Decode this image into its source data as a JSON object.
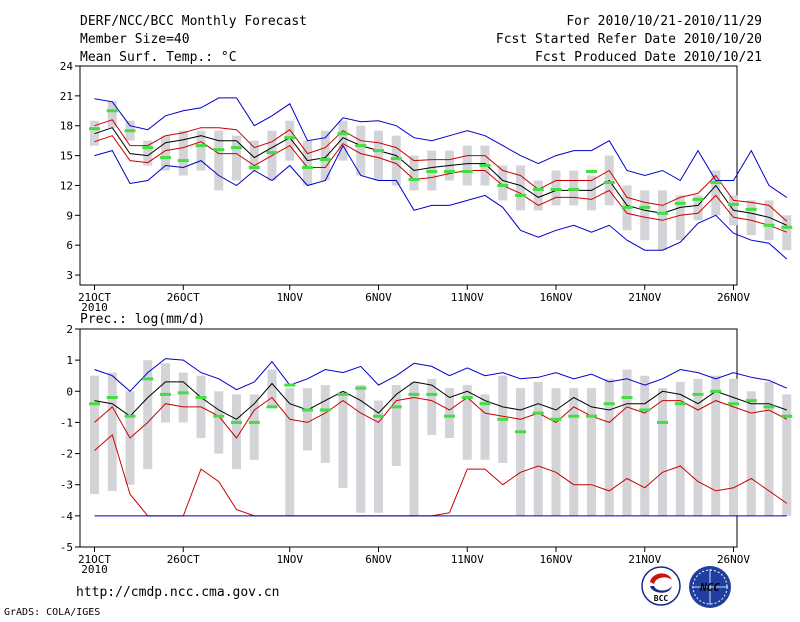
{
  "header": {
    "title": "DERF/NCC/BCC Monthly Forecast",
    "member_size": "Member Size=40",
    "variable": "Mean Surf. Temp.: °C",
    "period": "For 2010/10/21-2010/11/29",
    "fcst_start": "Fcst Started Refer Date 2010/10/20",
    "fcst_produced": "Fcst Produced Date 2010/10/21"
  },
  "footer": {
    "url": "http://cmdp.ncc.cma.gov.cn",
    "grads": "GrADS: COLA/IGES",
    "logo_bcc": "BCC",
    "logo_ncc": "NCC"
  },
  "colors": {
    "box": "#d3d3d8",
    "mean": "#000000",
    "spread": "#cc0000",
    "extreme": "#0000cc",
    "obs": "#44dd44"
  },
  "chart_data": [
    {
      "type": "line",
      "title": "Mean Surf. Temp.: °C",
      "x_start_label": "2010",
      "x": [
        21,
        22,
        23,
        24,
        25,
        26,
        27,
        28,
        29,
        30,
        31,
        32,
        33,
        34,
        35,
        36,
        37,
        38,
        39,
        40,
        41,
        42,
        43,
        44,
        45,
        46,
        47,
        48,
        49,
        50,
        51,
        52,
        53,
        54,
        55,
        56,
        57,
        58,
        59,
        60
      ],
      "xticks": [
        {
          "day": 21,
          "label": "21OCT"
        },
        {
          "day": 26,
          "label": "26OCT"
        },
        {
          "day": 32,
          "label": "1NOV"
        },
        {
          "day": 37,
          "label": "6NOV"
        },
        {
          "day": 42,
          "label": "11NOV"
        },
        {
          "day": 47,
          "label": "16NOV"
        },
        {
          "day": 52,
          "label": "21NOV"
        },
        {
          "day": 57,
          "label": "26NOV"
        }
      ],
      "ylim": [
        2,
        24
      ],
      "yticks": [
        3,
        6,
        9,
        12,
        15,
        18,
        21,
        24
      ],
      "series": [
        {
          "name": "max",
          "values": [
            20.7,
            20.4,
            18.0,
            17.6,
            19.0,
            19.5,
            19.8,
            20.8,
            20.8,
            18.0,
            19.0,
            20.2,
            16.5,
            16.8,
            18.8,
            18.4,
            18.5,
            18.0,
            16.8,
            16.5,
            17.0,
            17.5,
            17.0,
            16.0,
            15.0,
            14.2,
            15.0,
            15.5,
            15.5,
            16.5,
            13.5,
            13.0,
            13.5,
            12.5,
            15.5,
            12.5,
            12.5,
            15.5,
            12.0,
            10.8
          ]
        },
        {
          "name": "upper",
          "values": [
            18.0,
            18.6,
            16.0,
            16.0,
            17.0,
            17.3,
            17.8,
            17.8,
            17.6,
            15.8,
            16.4,
            17.6,
            15.2,
            15.8,
            17.5,
            16.5,
            16.3,
            15.8,
            14.5,
            14.6,
            14.6,
            15.0,
            15.0,
            13.5,
            13.0,
            11.6,
            12.5,
            12.5,
            12.5,
            13.5,
            10.8,
            10.3,
            10.0,
            10.8,
            11.2,
            13.0,
            10.5,
            10.3,
            10.0,
            8.4
          ]
        },
        {
          "name": "mean",
          "values": [
            17.2,
            17.8,
            15.2,
            15.0,
            16.3,
            16.6,
            17.0,
            16.5,
            16.5,
            14.8,
            15.8,
            16.8,
            14.5,
            14.8,
            16.8,
            16.0,
            15.5,
            15.0,
            13.5,
            13.8,
            14.0,
            14.2,
            14.2,
            12.5,
            12.0,
            10.8,
            11.5,
            11.5,
            11.5,
            12.5,
            10.0,
            9.5,
            9.2,
            9.8,
            10.0,
            12.0,
            9.5,
            9.2,
            8.8,
            8.0
          ]
        },
        {
          "name": "lower",
          "values": [
            16.4,
            17.0,
            14.5,
            14.3,
            15.5,
            15.8,
            16.4,
            15.2,
            15.2,
            14.0,
            15.0,
            16.0,
            13.8,
            13.8,
            16.2,
            15.2,
            14.8,
            14.2,
            12.6,
            12.8,
            13.2,
            13.5,
            13.5,
            12.0,
            11.2,
            10.0,
            10.8,
            10.8,
            10.6,
            11.5,
            9.2,
            8.8,
            8.5,
            9.0,
            9.2,
            11.0,
            8.8,
            8.5,
            8.0,
            7.3
          ]
        },
        {
          "name": "min",
          "values": [
            15.0,
            15.5,
            12.2,
            12.5,
            14.0,
            13.8,
            14.5,
            13.0,
            12.0,
            13.5,
            12.5,
            14.0,
            12.0,
            12.5,
            16.0,
            13.0,
            12.5,
            12.5,
            9.5,
            10.0,
            10.0,
            10.5,
            11.0,
            9.8,
            7.5,
            6.8,
            7.5,
            8.0,
            7.3,
            8.0,
            6.5,
            5.5,
            5.5,
            6.3,
            8.2,
            9.0,
            7.2,
            6.5,
            6.2,
            4.6
          ]
        }
      ],
      "boxes": {
        "low": [
          16.0,
          17.8,
          16.5,
          14.0,
          13.5,
          13.0,
          13.5,
          11.5,
          12.5,
          13.5,
          12.5,
          14.5,
          12.0,
          12.5,
          14.5,
          13.0,
          12.5,
          12.0,
          11.5,
          11.5,
          12.5,
          12.0,
          12.0,
          10.5,
          9.5,
          9.5,
          10.0,
          10.0,
          9.5,
          10.0,
          7.5,
          6.5,
          5.5,
          6.5,
          8.5,
          9.0,
          8.0,
          7.0,
          6.5,
          5.5
        ],
        "high": [
          18.5,
          20.5,
          18.5,
          16.5,
          17.0,
          17.5,
          17.5,
          17.5,
          17.0,
          16.5,
          17.5,
          18.5,
          16.5,
          17.5,
          18.5,
          18.0,
          17.5,
          17.0,
          15.0,
          15.5,
          15.5,
          16.0,
          16.0,
          14.0,
          14.0,
          12.5,
          13.5,
          13.5,
          13.0,
          15.0,
          12.0,
          11.5,
          11.5,
          11.0,
          11.0,
          13.5,
          11.0,
          10.5,
          10.5,
          9.0
        ]
      },
      "obs": [
        17.7,
        19.5,
        17.5,
        15.8,
        14.8,
        14.5,
        16.0,
        15.6,
        15.8,
        13.8,
        15.3,
        16.8,
        13.8,
        14.6,
        17.2,
        16.0,
        15.5,
        14.7,
        12.6,
        13.4,
        13.4,
        13.4,
        14.0,
        12.0,
        11.0,
        11.6,
        11.6,
        11.6,
        13.4,
        12.3,
        9.8,
        9.8,
        9.2,
        10.2,
        10.6,
        12.3,
        10.1,
        9.6,
        8.0,
        7.8
      ]
    },
    {
      "type": "line",
      "title": "Prec.: log(mm/d)",
      "x_start_label": "2010",
      "x": [
        21,
        22,
        23,
        24,
        25,
        26,
        27,
        28,
        29,
        30,
        31,
        32,
        33,
        34,
        35,
        36,
        37,
        38,
        39,
        40,
        41,
        42,
        43,
        44,
        45,
        46,
        47,
        48,
        49,
        50,
        51,
        52,
        53,
        54,
        55,
        56,
        57,
        58,
        59,
        60
      ],
      "xticks": [
        {
          "day": 21,
          "label": "21OCT"
        },
        {
          "day": 26,
          "label": "26OCT"
        },
        {
          "day": 32,
          "label": "1NOV"
        },
        {
          "day": 37,
          "label": "6NOV"
        },
        {
          "day": 42,
          "label": "11NOV"
        },
        {
          "day": 47,
          "label": "16NOV"
        },
        {
          "day": 52,
          "label": "21NOV"
        },
        {
          "day": 57,
          "label": "26NOV"
        }
      ],
      "ylim": [
        -5,
        2
      ],
      "yticks": [
        -5,
        -4,
        -3,
        -2,
        -1,
        0,
        1,
        2
      ],
      "series": [
        {
          "name": "max",
          "values": [
            0.7,
            0.5,
            0.0,
            0.6,
            1.05,
            1.0,
            0.6,
            0.4,
            0.05,
            0.3,
            0.95,
            0.2,
            0.4,
            0.7,
            0.6,
            0.8,
            0.2,
            0.5,
            0.9,
            0.8,
            0.5,
            0.75,
            0.5,
            0.6,
            0.4,
            0.45,
            0.6,
            0.4,
            0.55,
            0.3,
            0.4,
            0.2,
            0.4,
            0.7,
            0.6,
            0.4,
            0.6,
            0.45,
            0.35,
            0.1
          ]
        },
        {
          "name": "mean",
          "values": [
            -0.3,
            -0.4,
            -0.8,
            -0.2,
            0.3,
            0.3,
            -0.2,
            -0.6,
            -0.9,
            -0.4,
            0.25,
            -0.4,
            -0.6,
            -0.3,
            0.0,
            -0.3,
            -0.7,
            -0.1,
            0.3,
            0.2,
            -0.2,
            0.0,
            -0.3,
            -0.5,
            -0.6,
            -0.4,
            -0.6,
            -0.2,
            -0.5,
            -0.6,
            -0.4,
            -0.4,
            0.0,
            -0.1,
            -0.4,
            0.0,
            -0.2,
            -0.4,
            -0.4,
            -0.6
          ]
        },
        {
          "name": "upper",
          "values": [
            -1.0,
            -0.5,
            -1.5,
            -1.0,
            -0.4,
            -0.5,
            -0.5,
            -0.8,
            -1.5,
            -0.6,
            -0.2,
            -0.9,
            -1.0,
            -0.7,
            -0.3,
            -0.7,
            -1.0,
            -0.3,
            -0.2,
            -0.3,
            -0.6,
            -0.2,
            -0.7,
            -0.8,
            -0.9,
            -0.7,
            -1.0,
            -0.5,
            -0.8,
            -1.0,
            -0.5,
            -0.7,
            -0.3,
            -0.3,
            -0.6,
            -0.3,
            -0.5,
            -0.7,
            -0.6,
            -0.9
          ]
        },
        {
          "name": "lower",
          "values": [
            -1.9,
            -1.4,
            -3.3,
            -4.0,
            -4.0,
            -4.0,
            -2.5,
            -2.9,
            -3.8,
            -4.0,
            -4.0,
            -4.0,
            -4.0,
            -4.0,
            -4.0,
            -4.0,
            -4.0,
            -4.0,
            -4.0,
            -4.0,
            -3.9,
            -2.5,
            -2.5,
            -3.0,
            -2.6,
            -2.4,
            -2.6,
            -3.0,
            -3.0,
            -3.2,
            -2.8,
            -3.1,
            -2.6,
            -2.4,
            -2.9,
            -3.2,
            -3.1,
            -2.8,
            -3.2,
            -3.6
          ]
        },
        {
          "name": "min",
          "values": [
            -4.0,
            -4.0,
            -4.0,
            -4.0,
            -4.0,
            -4.0,
            -4.0,
            -4.0,
            -4.0,
            -4.0,
            -4.0,
            -4.0,
            -4.0,
            -4.0,
            -4.0,
            -4.0,
            -4.0,
            -4.0,
            -4.0,
            -4.0,
            -4.0,
            -4.0,
            -4.0,
            -4.0,
            -4.0,
            -4.0,
            -4.0,
            -4.0,
            -4.0,
            -4.0,
            -4.0,
            -4.0,
            -4.0,
            -4.0,
            -4.0,
            -4.0,
            -4.0,
            -4.0,
            -4.0,
            -4.0
          ]
        }
      ],
      "boxes": {
        "low": [
          -3.3,
          -3.2,
          -3.0,
          -2.5,
          -1.0,
          -1.0,
          -1.5,
          -2.0,
          -2.5,
          -2.2,
          -0.5,
          -4.0,
          -1.9,
          -2.3,
          -3.1,
          -3.9,
          -3.9,
          -2.4,
          -4.0,
          -1.4,
          -1.5,
          -2.2,
          -2.2,
          -2.3,
          -4.0,
          -4.0,
          -4.0,
          -4.0,
          -4.0,
          -4.0,
          -4.0,
          -4.0,
          -4.0,
          -4.0,
          -4.0,
          -4.0,
          -4.0,
          -4.0,
          -4.0,
          -4.0
        ],
        "high": [
          0.5,
          0.6,
          0.0,
          1.0,
          0.9,
          0.6,
          0.5,
          0.0,
          -0.1,
          -0.1,
          0.7,
          0.1,
          0.1,
          0.2,
          0.0,
          0.2,
          -0.3,
          0.2,
          0.3,
          0.4,
          0.1,
          0.2,
          -0.1,
          0.5,
          0.1,
          0.3,
          0.1,
          0.1,
          0.1,
          0.4,
          0.7,
          0.5,
          0.1,
          0.3,
          0.4,
          0.5,
          0.4,
          0.0,
          0.3,
          -0.1
        ]
      },
      "obs": [
        -0.4,
        -0.2,
        -0.8,
        0.4,
        -0.1,
        -0.05,
        -0.2,
        -0.8,
        -1.0,
        -1.0,
        -0.5,
        0.2,
        -0.6,
        -0.6,
        -0.1,
        0.1,
        -0.8,
        -0.5,
        -0.1,
        -0.1,
        -0.8,
        -0.2,
        -0.4,
        -0.9,
        -1.3,
        -0.7,
        -0.9,
        -0.8,
        -0.8,
        -0.4,
        -0.2,
        -0.6,
        -1.0,
        -0.4,
        -0.1,
        -0.0,
        -0.4,
        -0.3,
        -0.5,
        -0.8
      ]
    }
  ]
}
